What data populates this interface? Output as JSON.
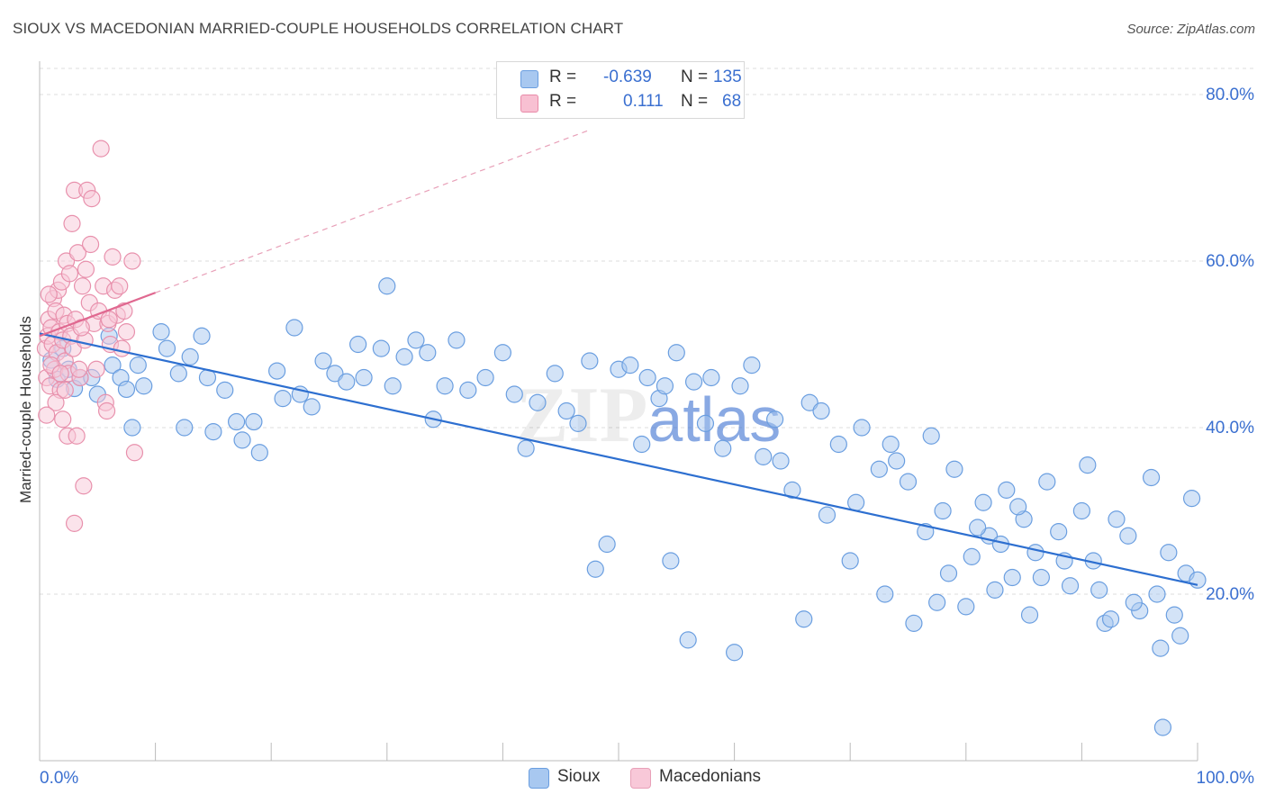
{
  "title": "SIOUX VS MACEDONIAN MARRIED-COUPLE HOUSEHOLDS CORRELATION CHART",
  "source": "Source: ZipAtlas.com",
  "watermark": {
    "part1": "ZIP",
    "part2": "atlas"
  },
  "legend": {
    "rows": [
      {
        "r_label": "R =",
        "r_value": "-0.639",
        "n_label": "N =",
        "n_value": "135",
        "color": "#a8c8f0",
        "border": "#6a9ee0"
      },
      {
        "r_label": "R =",
        "r_value": "0.111",
        "n_label": "N =",
        "n_value": "68",
        "color": "#f8b8cc",
        "border": "#e88aa8"
      }
    ]
  },
  "bottom_legend": [
    {
      "label": "Sioux",
      "color": "#a8c8f0",
      "border": "#6a9ee0"
    },
    {
      "label": "Macedonians",
      "color": "#f8c8d8",
      "border": "#e8a0b8"
    }
  ],
  "chart_data": {
    "type": "scatter",
    "title": "SIOUX VS MACEDONIAN MARRIED-COUPLE HOUSEHOLDS CORRELATION CHART",
    "xlabel": "",
    "ylabel": "Married-couple Households",
    "xlim": [
      0,
      100
    ],
    "ylim": [
      0,
      84
    ],
    "x_tick_labels": [
      "0.0%",
      "100.0%"
    ],
    "y_ticks": [
      20,
      40,
      60,
      80
    ],
    "y_tick_labels": [
      "20.0%",
      "40.0%",
      "60.0%",
      "80.0%"
    ],
    "grid": true,
    "legend_position": "top-center",
    "series": [
      {
        "name": "Sioux",
        "color": "#6a9ee0",
        "fill": "#a8c8f0",
        "trend": {
          "x": [
            0,
            100
          ],
          "y": [
            51.3,
            21.1
          ],
          "color": "#2d6fd0"
        },
        "points": [
          [
            1.0,
            48.1
          ],
          [
            1.5,
            45.8
          ],
          [
            2.0,
            49.5
          ],
          [
            2.5,
            47.0
          ],
          [
            3.0,
            44.7
          ],
          [
            3.5,
            46.0
          ],
          [
            4.5,
            46.0
          ],
          [
            5.0,
            44.0
          ],
          [
            6.0,
            51.0
          ],
          [
            6.3,
            47.5
          ],
          [
            7.0,
            46.0
          ],
          [
            7.5,
            44.6
          ],
          [
            8.0,
            40.0
          ],
          [
            8.5,
            47.5
          ],
          [
            9.0,
            45.0
          ],
          [
            10.5,
            51.5
          ],
          [
            11.0,
            49.5
          ],
          [
            12.0,
            46.5
          ],
          [
            12.5,
            40.0
          ],
          [
            13.0,
            48.5
          ],
          [
            14.0,
            51.0
          ],
          [
            14.5,
            46.0
          ],
          [
            15.0,
            39.5
          ],
          [
            16.0,
            44.5
          ],
          [
            17.0,
            40.7
          ],
          [
            17.5,
            38.5
          ],
          [
            18.5,
            40.7
          ],
          [
            19.0,
            37.0
          ],
          [
            20.5,
            46.8
          ],
          [
            21.0,
            43.5
          ],
          [
            22.0,
            52.0
          ],
          [
            22.5,
            44.0
          ],
          [
            23.5,
            42.5
          ],
          [
            24.5,
            48.0
          ],
          [
            25.5,
            46.5
          ],
          [
            26.5,
            45.5
          ],
          [
            27.5,
            50.0
          ],
          [
            28.0,
            46.0
          ],
          [
            29.5,
            49.5
          ],
          [
            30.0,
            57.0
          ],
          [
            30.5,
            45.0
          ],
          [
            31.5,
            48.5
          ],
          [
            32.5,
            50.5
          ],
          [
            33.5,
            49.0
          ],
          [
            34.0,
            41.0
          ],
          [
            35.0,
            45.0
          ],
          [
            36.0,
            50.5
          ],
          [
            37.0,
            44.5
          ],
          [
            38.5,
            46.0
          ],
          [
            40.0,
            49.0
          ],
          [
            41.0,
            44.0
          ],
          [
            42.0,
            37.5
          ],
          [
            43.0,
            43.0
          ],
          [
            44.5,
            46.5
          ],
          [
            45.5,
            42.0
          ],
          [
            46.5,
            40.5
          ],
          [
            47.5,
            48.0
          ],
          [
            48.0,
            23.0
          ],
          [
            49.0,
            26.0
          ],
          [
            50.0,
            47.0
          ],
          [
            51.0,
            47.5
          ],
          [
            52.0,
            38.0
          ],
          [
            52.5,
            46.0
          ],
          [
            53.5,
            43.5
          ],
          [
            54.0,
            45.0
          ],
          [
            55.0,
            49.0
          ],
          [
            56.5,
            45.5
          ],
          [
            57.5,
            40.5
          ],
          [
            58.0,
            46.0
          ],
          [
            59.0,
            37.5
          ],
          [
            60.5,
            45.0
          ],
          [
            61.5,
            47.5
          ],
          [
            62.5,
            36.5
          ],
          [
            63.5,
            41.0
          ],
          [
            64.0,
            36.0
          ],
          [
            65.0,
            32.5
          ],
          [
            66.5,
            43.0
          ],
          [
            67.5,
            42.0
          ],
          [
            68.0,
            29.5
          ],
          [
            69.0,
            38.0
          ],
          [
            70.5,
            31.0
          ],
          [
            71.0,
            40.0
          ],
          [
            72.5,
            35.0
          ],
          [
            73.5,
            38.0
          ],
          [
            74.0,
            36.0
          ],
          [
            75.0,
            33.5
          ],
          [
            76.5,
            27.5
          ],
          [
            77.0,
            39.0
          ],
          [
            78.0,
            30.0
          ],
          [
            79.0,
            35.0
          ],
          [
            80.5,
            24.5
          ],
          [
            81.5,
            31.0
          ],
          [
            82.0,
            27.0
          ],
          [
            83.5,
            32.5
          ],
          [
            84.0,
            22.0
          ],
          [
            85.0,
            29.0
          ],
          [
            86.0,
            25.0
          ],
          [
            87.0,
            33.5
          ],
          [
            88.0,
            27.5
          ],
          [
            89.0,
            21.0
          ],
          [
            90.0,
            30.0
          ],
          [
            90.5,
            35.5
          ],
          [
            91.0,
            24.0
          ],
          [
            92.0,
            16.5
          ],
          [
            93.0,
            29.0
          ],
          [
            94.0,
            27.0
          ],
          [
            95.0,
            18.0
          ],
          [
            96.0,
            34.0
          ],
          [
            96.5,
            20.0
          ],
          [
            97.5,
            25.0
          ],
          [
            98.0,
            17.5
          ],
          [
            99.0,
            22.5
          ],
          [
            99.5,
            31.5
          ],
          [
            100.0,
            21.7
          ],
          [
            97.0,
            4.0
          ],
          [
            92.5,
            17.0
          ],
          [
            86.5,
            22.0
          ],
          [
            84.5,
            30.5
          ],
          [
            81.0,
            28.0
          ],
          [
            83.0,
            26.0
          ],
          [
            66.0,
            17.0
          ],
          [
            70.0,
            24.0
          ],
          [
            73.0,
            20.0
          ],
          [
            75.5,
            16.5
          ],
          [
            77.5,
            19.0
          ],
          [
            78.5,
            22.5
          ],
          [
            80.0,
            18.5
          ],
          [
            82.5,
            20.5
          ],
          [
            85.5,
            17.5
          ],
          [
            88.5,
            24.0
          ],
          [
            91.5,
            20.5
          ],
          [
            94.5,
            19.0
          ],
          [
            96.8,
            13.5
          ],
          [
            98.5,
            15.0
          ],
          [
            56.0,
            14.5
          ],
          [
            60.0,
            13.0
          ],
          [
            54.5,
            24.0
          ]
        ]
      },
      {
        "name": "Macedonians",
        "color": "#e890ac",
        "fill": "#f8c8d8",
        "trend": {
          "x": [
            0,
            10
          ],
          "y": [
            51.0,
            56.2
          ],
          "color": "#e06890"
        },
        "trend_ext": {
          "x": [
            10,
            47.6
          ],
          "y": [
            56.2,
            75.8
          ],
          "color": "#e8a0b8"
        },
        "points": [
          [
            0.5,
            49.5
          ],
          [
            0.6,
            46.0
          ],
          [
            0.7,
            51.0
          ],
          [
            0.8,
            53.0
          ],
          [
            0.9,
            45.0
          ],
          [
            1.0,
            52.0
          ],
          [
            1.1,
            50.0
          ],
          [
            1.2,
            55.5
          ],
          [
            1.3,
            47.0
          ],
          [
            1.4,
            54.0
          ],
          [
            1.5,
            49.0
          ],
          [
            1.6,
            56.5
          ],
          [
            1.7,
            51.5
          ],
          [
            1.8,
            44.5
          ],
          [
            1.9,
            57.5
          ],
          [
            2.0,
            50.5
          ],
          [
            2.1,
            53.5
          ],
          [
            2.2,
            48.0
          ],
          [
            2.3,
            60.0
          ],
          [
            2.4,
            52.5
          ],
          [
            2.5,
            46.5
          ],
          [
            2.6,
            58.5
          ],
          [
            2.7,
            51.0
          ],
          [
            2.8,
            64.5
          ],
          [
            2.9,
            49.5
          ],
          [
            3.0,
            68.5
          ],
          [
            3.1,
            53.0
          ],
          [
            3.3,
            61.0
          ],
          [
            3.5,
            46.0
          ],
          [
            3.7,
            57.0
          ],
          [
            3.9,
            50.5
          ],
          [
            4.1,
            68.5
          ],
          [
            4.3,
            55.0
          ],
          [
            4.5,
            67.5
          ],
          [
            4.7,
            52.5
          ],
          [
            4.9,
            47.0
          ],
          [
            5.1,
            54.0
          ],
          [
            5.3,
            73.5
          ],
          [
            5.5,
            57.0
          ],
          [
            5.7,
            43.0
          ],
          [
            5.9,
            52.5
          ],
          [
            6.1,
            50.0
          ],
          [
            6.3,
            60.5
          ],
          [
            6.5,
            56.5
          ],
          [
            6.7,
            53.5
          ],
          [
            6.9,
            57.0
          ],
          [
            7.1,
            49.5
          ],
          [
            7.3,
            54.0
          ],
          [
            7.5,
            51.5
          ],
          [
            2.0,
            41.0
          ],
          [
            2.4,
            39.0
          ],
          [
            3.2,
            39.0
          ],
          [
            3.0,
            28.5
          ],
          [
            3.8,
            33.0
          ],
          [
            8.2,
            37.0
          ],
          [
            8.0,
            60.0
          ],
          [
            1.0,
            47.5
          ],
          [
            1.4,
            43.0
          ],
          [
            0.6,
            41.5
          ],
          [
            4.4,
            62.0
          ],
          [
            3.6,
            52.0
          ],
          [
            1.8,
            46.5
          ],
          [
            2.2,
            44.5
          ],
          [
            5.8,
            42.0
          ],
          [
            6.0,
            53.0
          ],
          [
            0.8,
            56.0
          ],
          [
            4.0,
            59.0
          ],
          [
            3.4,
            47.0
          ]
        ]
      }
    ]
  }
}
